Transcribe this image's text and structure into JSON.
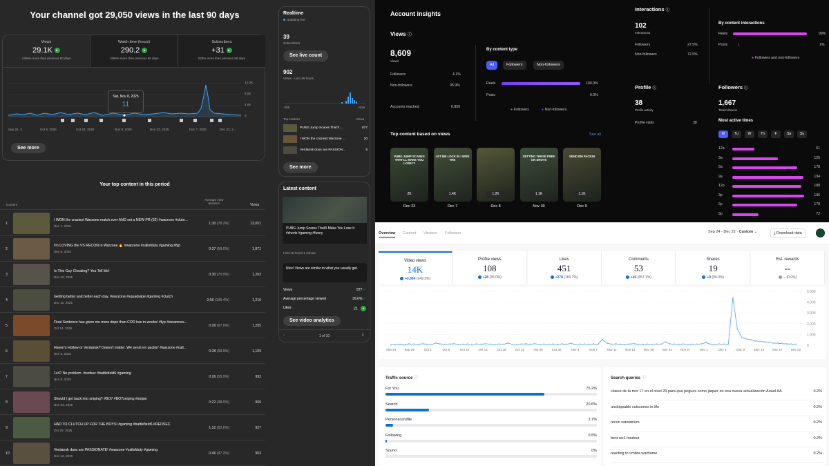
{
  "yt": {
    "headline": "Your channel got 29,050 views in the last 90 days",
    "metrics": [
      {
        "label": "Views",
        "value": "29.1K",
        "sub": "+999% more than previous 90 days"
      },
      {
        "label": "Watch time (hours)",
        "value": "290.2",
        "sub": "+999% more than previous 90 days"
      },
      {
        "label": "Subscribers",
        "value": "+31",
        "sub": "520% more than previous 90 days"
      }
    ],
    "tooltip": {
      "date": "Sat, Nov 8, 2025",
      "value": "11"
    },
    "y_ticks": [
      "12.0K",
      "8.0K",
      "4.0K",
      "0"
    ],
    "x_ticks": [
      "Sep 24, 2...",
      "Oct 9, 2025",
      "Oct 24, 2025",
      "Nov 8, 2025",
      "Nov 22, 2025",
      "Dec 7, 2025",
      "Dec 22, 2..."
    ],
    "see_more": "See more",
    "top_title": "Your top content in this period",
    "col_content": "Content",
    "col_avg1": "Average view",
    "col_avg2": "duration",
    "col_views": "Views",
    "rows": [
      {
        "n": "1",
        "title": "I WON the craziest Warzone match ever AND set a NEW PR (32) #warzone #cluto...",
        "date": "Dec 7, 2025",
        "dur": "1:30",
        "pct": "(78.2%)",
        "views": "13,051"
      },
      {
        "n": "2",
        "title": "I'm LOVING the VS RECON in Warzone 🔥 #warzone #callofduty #gaming #fyp",
        "date": "Dec 8, 2025",
        "dur": "0:37",
        "pct": "(59.0%)",
        "views": "1,871"
      },
      {
        "n": "3",
        "title": "Is This Guy Cheating? You Tell Me!",
        "date": "Dec 10, 2025",
        "dur": "0:30",
        "pct": "(70.9%)",
        "views": "1,263"
      },
      {
        "n": "4",
        "title": "Getting better and better each day. #warzone #squadwipe #gaming #clutch",
        "date": "Dec 11, 2025",
        "dur": "0:56",
        "pct": "(106.4%)",
        "views": "1,216"
      },
      {
        "n": "5",
        "title": "Final Sentence has given me more dope than COD has in weeks! #fyp #steamnex...",
        "date": "Oct 14, 2025",
        "dur": "0:26",
        "pct": "(67.0%)",
        "views": "1,205"
      },
      {
        "n": "6",
        "title": "Haven's Hollow or Verdansk? Doesn't matter. We send em packin' #warzone #call...",
        "date": "Dec 9, 2025",
        "dur": "0:28",
        "pct": "(58.9%)",
        "views": "1,109"
      },
      {
        "n": "7",
        "title": "1v4? No problem. #redsec #battlefield6 #gaming",
        "date": "Nov 6, 2025",
        "dur": "0:26",
        "pct": "(55.9%)",
        "views": "992"
      },
      {
        "n": "8",
        "title": "Should I get back into sniping? #BO7 #BO7sniping #sniper",
        "date": "Nov 24, 2025",
        "dur": "0:22",
        "pct": "(38.9%)",
        "views": "960"
      },
      {
        "n": "9",
        "title": "HAD TO CLUTCH UP FOR THE BOYS! #gaming #battlefield6 #REDSEC",
        "date": "Oct 29, 2025",
        "dur": "1:22",
        "pct": "(52.0%)",
        "views": "927"
      },
      {
        "n": "10",
        "title": "Verdansk duos are PASSIONATE! #warzone #callofduty #gaming",
        "date": "Dec 12, 2025",
        "dur": "0:46",
        "pct": "(47.3%)",
        "views": "903"
      }
    ],
    "realtime": {
      "title": "Realtime",
      "live": "Updating live",
      "subs": "39",
      "subs_label": "Subscribers",
      "live_count_btn": "See live count",
      "views": "902",
      "views_label": "Views · Last 48 hours",
      "ax_left": "-48h",
      "ax_right": "Now",
      "top_label": "Top content",
      "views_col": "Views",
      "items": [
        {
          "title": "PUBG Jump Scares That'll ...",
          "views": "877"
        },
        {
          "title": "I WON the craziest Warzone ...",
          "views": "20"
        },
        {
          "title": "Verdansk duos are PASSION...",
          "views": "5"
        }
      ],
      "see_more": "See more"
    },
    "latest": {
      "title": "Latest content",
      "video_title": "PUBG Jump Scares That'll Make You Lose It #shorts #gaming #funny",
      "time": "First 19 hours 1 minute",
      "note": "Nice! Views are similar to what you usually get.",
      "stats": [
        {
          "label": "Views",
          "value": "877"
        },
        {
          "label": "Average percentage viewed",
          "value": "39.0%"
        },
        {
          "label": "Likes",
          "value": "21"
        }
      ],
      "btn": "See video analytics",
      "pager": "1 of 10"
    }
  },
  "ig": {
    "title": "Account insights",
    "views_title": "Views",
    "views": "8,609",
    "views_sub": "Views",
    "followers_label": "Followers",
    "followers_pct": "4.1%",
    "nonfollowers_label": "Non-followers",
    "nonfollowers_pct": "95.9%",
    "reached_label": "Accounts reached",
    "reached": "6,859",
    "by_type": "By content type",
    "tabs": [
      "All",
      "Followers",
      "Non-followers"
    ],
    "reels_label": "Reels",
    "reels_pct": "100.0%",
    "posts_label": "Posts",
    "posts_pct": "0.0%",
    "legend": [
      "Followers",
      "Non-followers"
    ],
    "top_title": "Top content based on views",
    "see_all": "See all",
    "tiles": [
      {
        "views": "2K",
        "date": "Dec 23",
        "caption": "PUBG JUMP SCARES THAT'LL MAKE YOU LOSE IT"
      },
      {
        "views": "1.4K",
        "date": "Dec 7",
        "caption": "LET ME LOCK IN I WON THE"
      },
      {
        "views": "1.2K",
        "date": "Dec 8",
        "caption": ""
      },
      {
        "views": "1.1K",
        "date": "Nov 30",
        "caption": "SETTING THESE FREE ON SHOTS"
      },
      {
        "views": "1.1K",
        "date": "Dec 9",
        "caption": "SEND EM PACKIN"
      }
    ],
    "interactions_title": "Interactions",
    "interactions": "102",
    "interactions_sub": "Interactions",
    "i_followers": "27.5%",
    "i_nonfollowers": "72.5%",
    "by_interactions": "By content interactions",
    "i_reels": "99%",
    "i_posts": "1%",
    "i_posts_mark": "1",
    "i_legend": "Followers and non-followers",
    "profile_title": "Profile",
    "profile_activity": "38",
    "profile_activity_sub": "Profile activity",
    "profile_visits_label": "Profile visits",
    "profile_visits": "38",
    "followers_title": "Followers",
    "total_followers": "1,667",
    "total_followers_sub": "Total followers",
    "active_title": "Most active times",
    "days": [
      "M",
      "Tu",
      "W",
      "Th",
      "F",
      "Sa",
      "Su"
    ],
    "hours": [
      {
        "h": "12a",
        "v": 61
      },
      {
        "h": "3a",
        "v": 125
      },
      {
        "h": "6a",
        "v": 178
      },
      {
        "h": "9a",
        "v": 194
      },
      {
        "h": "12p",
        "v": 188
      },
      {
        "h": "3p",
        "v": 196
      },
      {
        "h": "6p",
        "v": 178
      },
      {
        "h": "9p",
        "v": 72
      }
    ]
  },
  "tt": {
    "tabs": [
      "Overview",
      "Content",
      "Viewers",
      "Followers"
    ],
    "date_range": "Sep 24 - Dec 22",
    "custom": "Custom",
    "download": "Download data",
    "kpis": [
      {
        "label": "Video views",
        "value": "14K",
        "change": "+9,994",
        "pct": "(249.3%)"
      },
      {
        "label": "Profile views",
        "value": "108",
        "change": "+28",
        "pct": "(35.0%)"
      },
      {
        "label": "Likes",
        "value": "451",
        "change": "+278",
        "pct": "(160.7%)"
      },
      {
        "label": "Comments",
        "value": "53",
        "change": "+46",
        "pct": "(657.1%)"
      },
      {
        "label": "Shares",
        "value": "19",
        "change": "+9",
        "pct": "(90.0%)"
      },
      {
        "label": "Est. rewards",
        "value": "--",
        "change": "--",
        "pct": "(0.0%)"
      }
    ],
    "y_ticks": [
      "5,000",
      "4,000",
      "3,000",
      "2,000",
      "1,000",
      "0"
    ],
    "x_ticks": [
      "Sep 24",
      "Sep 29",
      "Oct 2",
      "Oct 6",
      "Oct 10",
      "Oct 14",
      "Oct 18",
      "Oct 22",
      "Oct 26",
      "Oct 30",
      "Nov 3",
      "Nov 7",
      "Nov 11",
      "Nov 15",
      "Nov 19",
      "Nov 23",
      "Nov 27",
      "Dec 1",
      "Dec 5",
      "Dec 9",
      "Dec 13",
      "Dec 17",
      "Dec 22"
    ],
    "traffic_title": "Traffic source",
    "traffic": [
      {
        "label": "For You",
        "pct": "75.2%",
        "v": 75.2
      },
      {
        "label": "Search",
        "pct": "20.6%",
        "v": 20.6
      },
      {
        "label": "Personal profile",
        "pct": "3.7%",
        "v": 3.7
      },
      {
        "label": "Following",
        "pct": "0.5%",
        "v": 0.5
      },
      {
        "label": "Sound",
        "pct": "0%",
        "v": 0
      }
    ],
    "search_title": "Search queries",
    "queries": [
      {
        "q": "clases de la mxr 17 en el nivel 29 para que pegues como jáquer en esa nueva actualización Anuel AA",
        "pct": "0.2%"
      },
      {
        "q": "unskippable cutscenes in life",
        "pct": "0.2%"
      },
      {
        "q": "recon ssɐssɐ/urs",
        "pct": "0.2%"
      },
      {
        "q": "best wz1 loadout",
        "pct": "0.2%"
      },
      {
        "q": "reacting to umbra warframe",
        "pct": "0.2%"
      }
    ]
  }
}
